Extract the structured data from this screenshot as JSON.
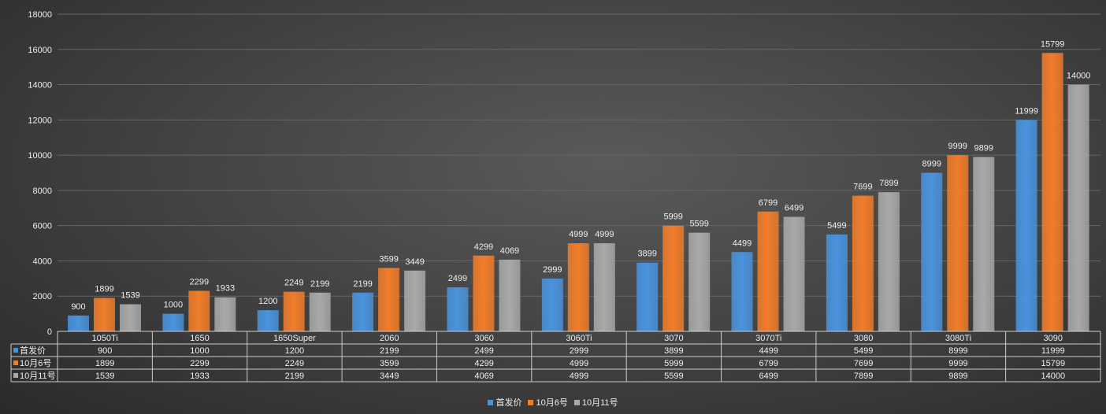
{
  "chart_data": {
    "type": "bar",
    "categories": [
      "1050Ti",
      "1650",
      "1650Super",
      "2060",
      "3060",
      "3060Ti",
      "3070",
      "3070Ti",
      "3080",
      "3080Ti",
      "3090"
    ],
    "series": [
      {
        "name": "首发价",
        "color": "#4a93dc",
        "values": [
          900,
          1000,
          1200,
          2199,
          2499,
          2999,
          3899,
          4499,
          5499,
          8999,
          11999
        ]
      },
      {
        "name": "10月6号",
        "color": "#f07d2a",
        "values": [
          1899,
          2299,
          2249,
          3599,
          4299,
          4999,
          5999,
          6799,
          7699,
          9999,
          15799
        ]
      },
      {
        "name": "10月11号",
        "color": "#a9a9a9",
        "values": [
          1539,
          1933,
          2199,
          3449,
          4069,
          4999,
          5599,
          6499,
          7899,
          9899,
          14000
        ]
      }
    ],
    "yticks": [
      0,
      2000,
      4000,
      6000,
      8000,
      10000,
      12000,
      14000,
      16000,
      18000
    ],
    "ylim": [
      0,
      18000
    ],
    "grid": true,
    "data_table": true,
    "legend": "bottom"
  }
}
